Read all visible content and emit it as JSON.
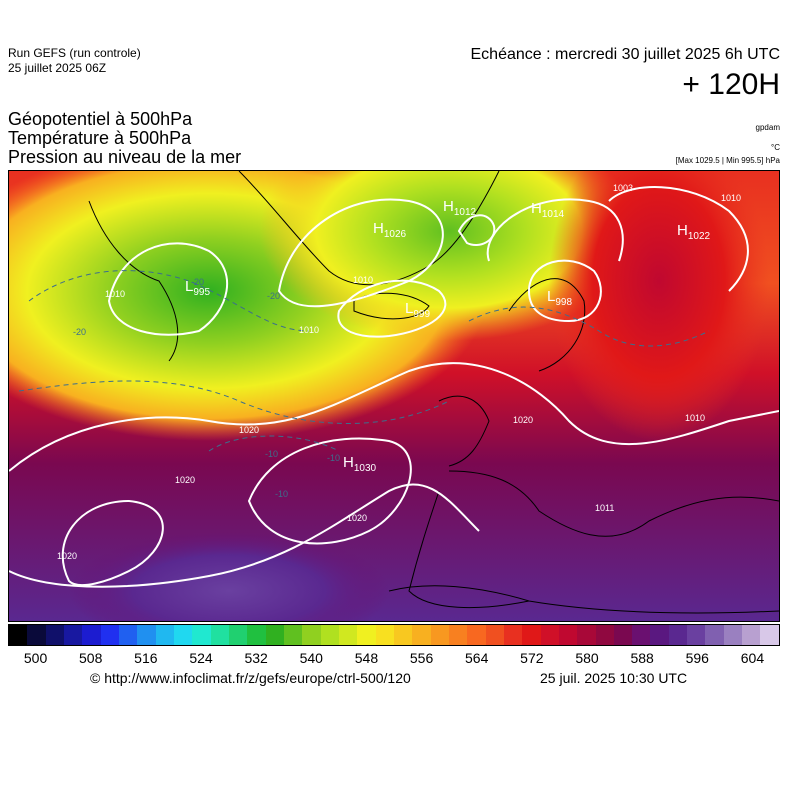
{
  "header": {
    "run_title": "Run GEFS (run controle)",
    "run_date": "25 juillet 2025 06Z",
    "echeance": "Echéance : mercredi 30 juillet 2025 6h UTC",
    "lead_time": "+ 120H"
  },
  "parameters": {
    "line1": "Géopotentiel à 500hPa",
    "line2": "Température à 500hPa",
    "line3": "Pression au niveau de la mer"
  },
  "units": {
    "geopotential": "gpdam",
    "temperature": "°C",
    "pressure": "[Max 1029.5 | Min 995.5] hPa"
  },
  "pressure_centers": [
    {
      "type": "L",
      "value": "995"
    },
    {
      "type": "H",
      "value": "1026"
    },
    {
      "type": "H",
      "value": "1012"
    },
    {
      "type": "H",
      "value": "1014"
    },
    {
      "type": "L",
      "value": "999"
    },
    {
      "type": "H",
      "value": "1022"
    },
    {
      "type": "L",
      "value": "998"
    },
    {
      "type": "H",
      "value": "1030"
    }
  ],
  "isobar_labels": [
    "1003",
    "1010",
    "1010",
    "1010",
    "1010",
    "1010",
    "1020",
    "1020",
    "1020",
    "1020",
    "1020",
    "1011"
  ],
  "temperature_labels": [
    "-20",
    "-20",
    "-20",
    "-10",
    "-10",
    "-10"
  ],
  "colorbar": {
    "ticks": [
      "500",
      "508",
      "516",
      "524",
      "532",
      "540",
      "548",
      "556",
      "564",
      "572",
      "580",
      "588",
      "596",
      "604"
    ],
    "colors": [
      "#000000",
      "#0a0a3a",
      "#10106a",
      "#1818a0",
      "#1c1cd0",
      "#2030f0",
      "#2060f0",
      "#2090f0",
      "#20b8f0",
      "#20d8f0",
      "#20e8d0",
      "#20e0a0",
      "#20d070",
      "#20c040",
      "#30b020",
      "#60c020",
      "#90d020",
      "#b0e020",
      "#d0e820",
      "#f0f020",
      "#f8e020",
      "#f8c820",
      "#f8b020",
      "#f89820",
      "#f88020",
      "#f86820",
      "#f05020",
      "#e83020",
      "#e01818",
      "#d01028",
      "#c00830",
      "#a80838",
      "#900840",
      "#7a0850",
      "#6a1070",
      "#5a1880",
      "#5a2890",
      "#6a40a0",
      "#8060b0",
      "#9a80c0",
      "#b8a0d0",
      "#d8c8e8"
    ],
    "min": 500,
    "max": 604,
    "step": 8
  },
  "footer": {
    "credit": "© http://www.infoclimat.fr/z/gefs/europe/ctrl-500/120",
    "issued": "25 juil. 2025 10:30 UTC"
  }
}
